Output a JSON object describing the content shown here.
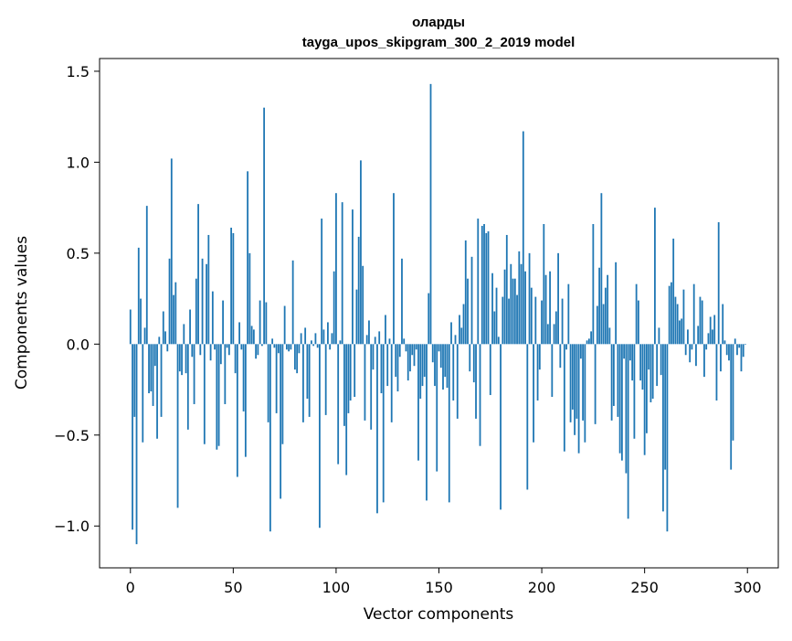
{
  "chart_data": {
    "type": "bar",
    "title_line1": "оларды",
    "title_line2": "tayga_upos_skipgram_300_2_2019 model",
    "xlabel": "Vector components",
    "ylabel": "Components values",
    "xlim": [
      -15,
      315
    ],
    "ylim": [
      -1.23,
      1.57
    ],
    "xticks": [
      0,
      50,
      100,
      150,
      200,
      250,
      300
    ],
    "xtick_labels": [
      "0",
      "50",
      "100",
      "150",
      "200",
      "250",
      "300"
    ],
    "yticks": [
      -1.0,
      -0.5,
      0.0,
      0.5,
      1.0,
      1.5
    ],
    "ytick_labels": [
      "−1.0",
      "−0.5",
      "0.0",
      "0.5",
      "1.0",
      "1.5"
    ],
    "bar_color": "#1f77b4",
    "grid": false,
    "values": [
      0.19,
      -1.02,
      -0.4,
      -1.1,
      0.53,
      0.25,
      -0.54,
      0.09,
      0.76,
      -0.27,
      -0.26,
      -0.34,
      -0.12,
      -0.52,
      0.04,
      -0.4,
      0.18,
      0.07,
      -0.04,
      0.47,
      1.02,
      0.27,
      0.34,
      -0.9,
      -0.15,
      -0.17,
      0.11,
      -0.16,
      -0.47,
      0.19,
      -0.07,
      -0.33,
      0.36,
      0.77,
      -0.06,
      0.47,
      -0.55,
      0.44,
      0.6,
      -0.09,
      0.29,
      -0.03,
      -0.58,
      -0.56,
      -0.11,
      0.24,
      -0.33,
      -0.02,
      -0.06,
      0.64,
      0.61,
      -0.16,
      -0.73,
      0.12,
      -0.03,
      -0.37,
      -0.62,
      0.95,
      0.5,
      0.1,
      0.08,
      -0.08,
      -0.06,
      0.24,
      -0.01,
      1.3,
      0.23,
      -0.43,
      -1.03,
      0.03,
      -0.02,
      -0.38,
      -0.05,
      -0.85,
      -0.55,
      0.21,
      -0.03,
      -0.04,
      -0.03,
      0.46,
      -0.14,
      -0.16,
      -0.05,
      0.06,
      -0.43,
      0.09,
      -0.3,
      -0.4,
      0.02,
      -0.01,
      0.06,
      -0.02,
      -1.01,
      0.69,
      0.08,
      -0.39,
      0.12,
      -0.03,
      0.06,
      0.4,
      0.83,
      -0.66,
      0.02,
      0.78,
      -0.45,
      -0.72,
      -0.38,
      -0.31,
      0.74,
      -0.29,
      0.3,
      0.59,
      1.01,
      0.43,
      -0.42,
      0.05,
      0.13,
      -0.47,
      -0.14,
      0.04,
      -0.93,
      0.07,
      -0.27,
      -0.87,
      0.16,
      -0.23,
      0.03,
      -0.43,
      0.83,
      -0.18,
      -0.26,
      -0.07,
      0.47,
      0.03,
      -0.04,
      -0.2,
      -0.15,
      -0.06,
      -0.12,
      -0.03,
      -0.64,
      -0.3,
      -0.23,
      -0.18,
      -0.86,
      0.28,
      1.43,
      -0.1,
      -0.23,
      -0.7,
      -0.04,
      -0.13,
      -0.25,
      -0.18,
      -0.24,
      -0.87,
      0.12,
      -0.31,
      0.05,
      -0.41,
      0.16,
      0.09,
      0.22,
      0.57,
      0.36,
      -0.15,
      0.48,
      -0.21,
      -0.41,
      0.69,
      -0.56,
      0.65,
      0.66,
      0.61,
      0.62,
      -0.28,
      0.39,
      0.18,
      0.31,
      0.04,
      -0.91,
      0.26,
      0.41,
      0.6,
      0.25,
      0.44,
      0.36,
      0.36,
      0.27,
      0.51,
      0.44,
      1.17,
      0.4,
      -0.8,
      0.5,
      0.31,
      -0.54,
      0.26,
      -0.31,
      -0.14,
      0.24,
      0.66,
      0.38,
      0.11,
      0.4,
      -0.29,
      0.11,
      0.18,
      0.5,
      -0.13,
      0.25,
      -0.59,
      -0.03,
      0.33,
      -0.43,
      -0.36,
      -0.5,
      -0.41,
      -0.6,
      -0.08,
      -0.42,
      -0.54,
      0.02,
      0.03,
      0.07,
      0.66,
      -0.44,
      0.21,
      0.42,
      0.83,
      0.22,
      0.31,
      0.38,
      0.09,
      -0.42,
      -0.34,
      0.45,
      -0.4,
      -0.6,
      -0.64,
      -0.08,
      -0.71,
      -0.96,
      -0.09,
      -0.2,
      -0.52,
      0.33,
      0.24,
      -0.2,
      -0.25,
      -0.61,
      -0.49,
      -0.14,
      -0.32,
      -0.3,
      0.75,
      -0.23,
      0.09,
      -0.17,
      -0.92,
      -0.69,
      -1.03,
      0.32,
      0.34,
      0.58,
      0.26,
      0.22,
      0.13,
      0.14,
      0.3,
      -0.06,
      0.08,
      -0.1,
      -0.03,
      0.33,
      -0.12,
      0.1,
      0.26,
      0.24,
      -0.18,
      -0.03,
      0.06,
      0.15,
      0.08,
      0.16,
      -0.31,
      0.67,
      -0.15,
      0.22,
      0.02,
      -0.06,
      -0.09,
      -0.69,
      -0.53,
      0.03,
      -0.06,
      -0.02,
      -0.15,
      -0.07,
      0.0
    ]
  }
}
